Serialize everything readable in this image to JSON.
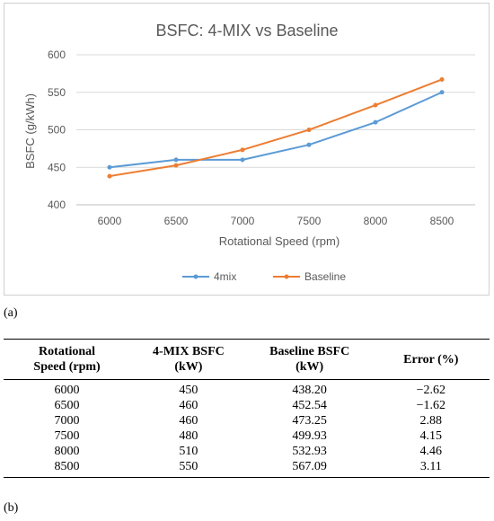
{
  "chart_data": {
    "type": "line",
    "title": "BSFC: 4-MIX vs Baseline",
    "xlabel": "Rotational Speed (rpm)",
    "ylabel": "BSFC (g/kWh)",
    "categories": [
      "6000",
      "6500",
      "7000",
      "7500",
      "8000",
      "8500"
    ],
    "ylim": [
      400,
      600
    ],
    "yticks": [
      400,
      450,
      500,
      550,
      600
    ],
    "grid": true,
    "legend_position": "bottom",
    "series": [
      {
        "name": "4mix",
        "color": "#5b9bd5",
        "values": [
          450,
          460,
          460,
          480,
          510,
          550
        ]
      },
      {
        "name": "Baseline",
        "color": "#ed7d31",
        "values": [
          438.2,
          452.54,
          473.25,
          499.93,
          532.93,
          567.09
        ]
      }
    ]
  },
  "caption_a": "(a)",
  "caption_b": "(b)",
  "table": {
    "headers": [
      [
        "Rotational",
        "Speed (rpm)"
      ],
      [
        "4-MIX BSFC",
        "(kW)"
      ],
      [
        "Baseline BSFC",
        "(kW)"
      ],
      [
        "Error (%)"
      ]
    ],
    "rows": [
      [
        "6000",
        "450",
        "438.20",
        "−2.62"
      ],
      [
        "6500",
        "460",
        "452.54",
        "−1.62"
      ],
      [
        "7000",
        "460",
        "473.25",
        "2.88"
      ],
      [
        "7500",
        "480",
        "499.93",
        "4.15"
      ],
      [
        "8000",
        "510",
        "532.93",
        "4.46"
      ],
      [
        "8500",
        "550",
        "567.09",
        "3.11"
      ]
    ]
  }
}
